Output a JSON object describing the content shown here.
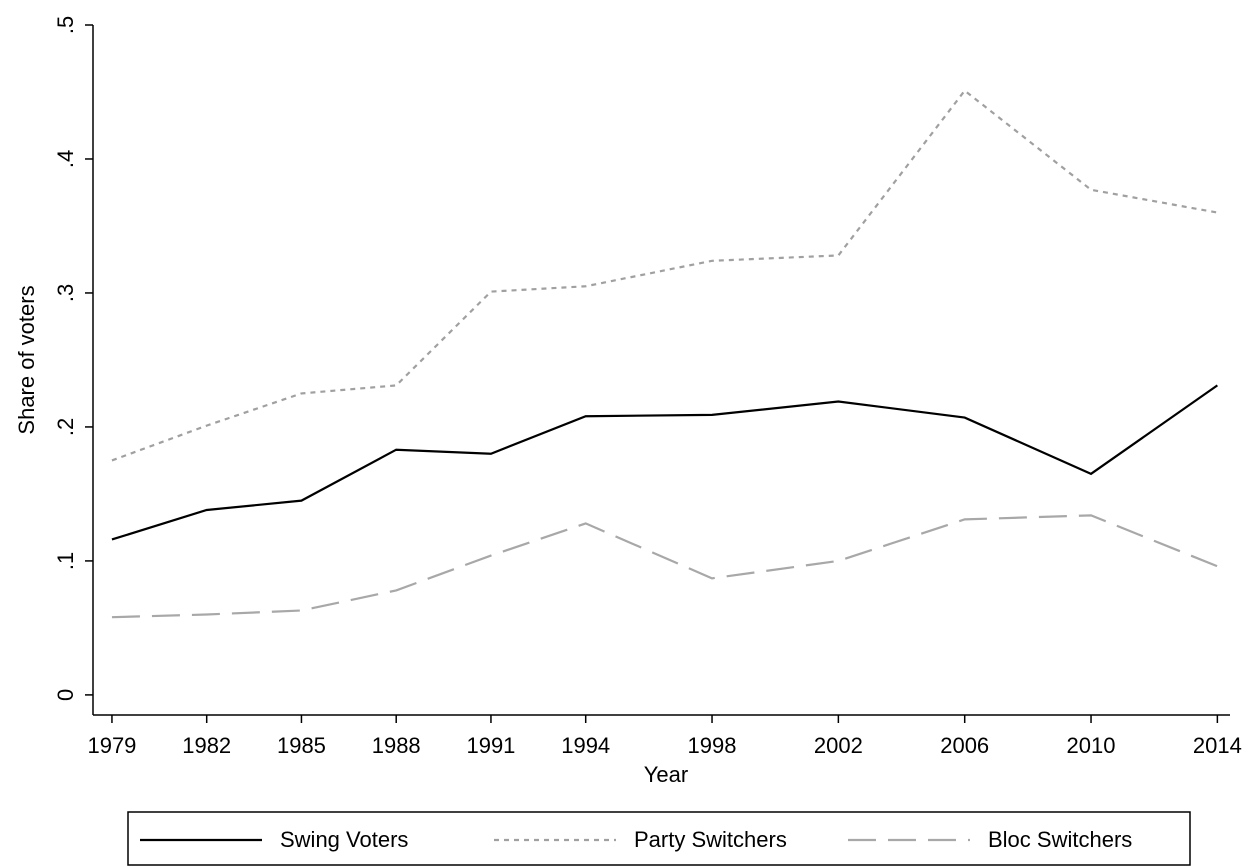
{
  "chart_data": {
    "type": "line",
    "x_label": "Year",
    "y_label": "Share of voters",
    "x": [
      1979,
      1982,
      1985,
      1988,
      1991,
      1994,
      1998,
      2002,
      2006,
      2010,
      2014
    ],
    "series": [
      {
        "name": "Swing Voters",
        "color": "#000000",
        "dash": "solid",
        "values": [
          0.116,
          0.138,
          0.145,
          0.183,
          0.18,
          0.208,
          0.209,
          0.219,
          0.207,
          0.165,
          0.231
        ]
      },
      {
        "name": "Party Switchers",
        "color": "#a0a0a0",
        "dash": "dot",
        "values": [
          0.175,
          0.201,
          0.225,
          0.231,
          0.301,
          0.305,
          0.324,
          0.328,
          0.451,
          0.377,
          0.36
        ]
      },
      {
        "name": "Bloc Switchers",
        "color": "#a8a8a8",
        "dash": "longdash",
        "values": [
          0.058,
          0.06,
          0.063,
          0.078,
          0.104,
          0.128,
          0.087,
          0.1,
          0.131,
          0.134,
          0.096
        ]
      }
    ],
    "xlim": [
      1978.4,
      2014.4
    ],
    "xticks": [
      1979,
      1982,
      1985,
      1988,
      1991,
      1994,
      1998,
      2002,
      2006,
      2010,
      2014
    ],
    "ylim": [
      -0.015,
      0.5
    ],
    "yticks": [
      0,
      {
        "value": 0.1,
        "label": ".1"
      },
      {
        "value": 0.2,
        "label": ".2"
      },
      {
        "value": 0.3,
        "label": ".3"
      },
      {
        "value": 0.4,
        "label": ".4"
      },
      {
        "value": 0.5,
        "label": ".5"
      }
    ],
    "grid": false,
    "legend": "bottom"
  }
}
